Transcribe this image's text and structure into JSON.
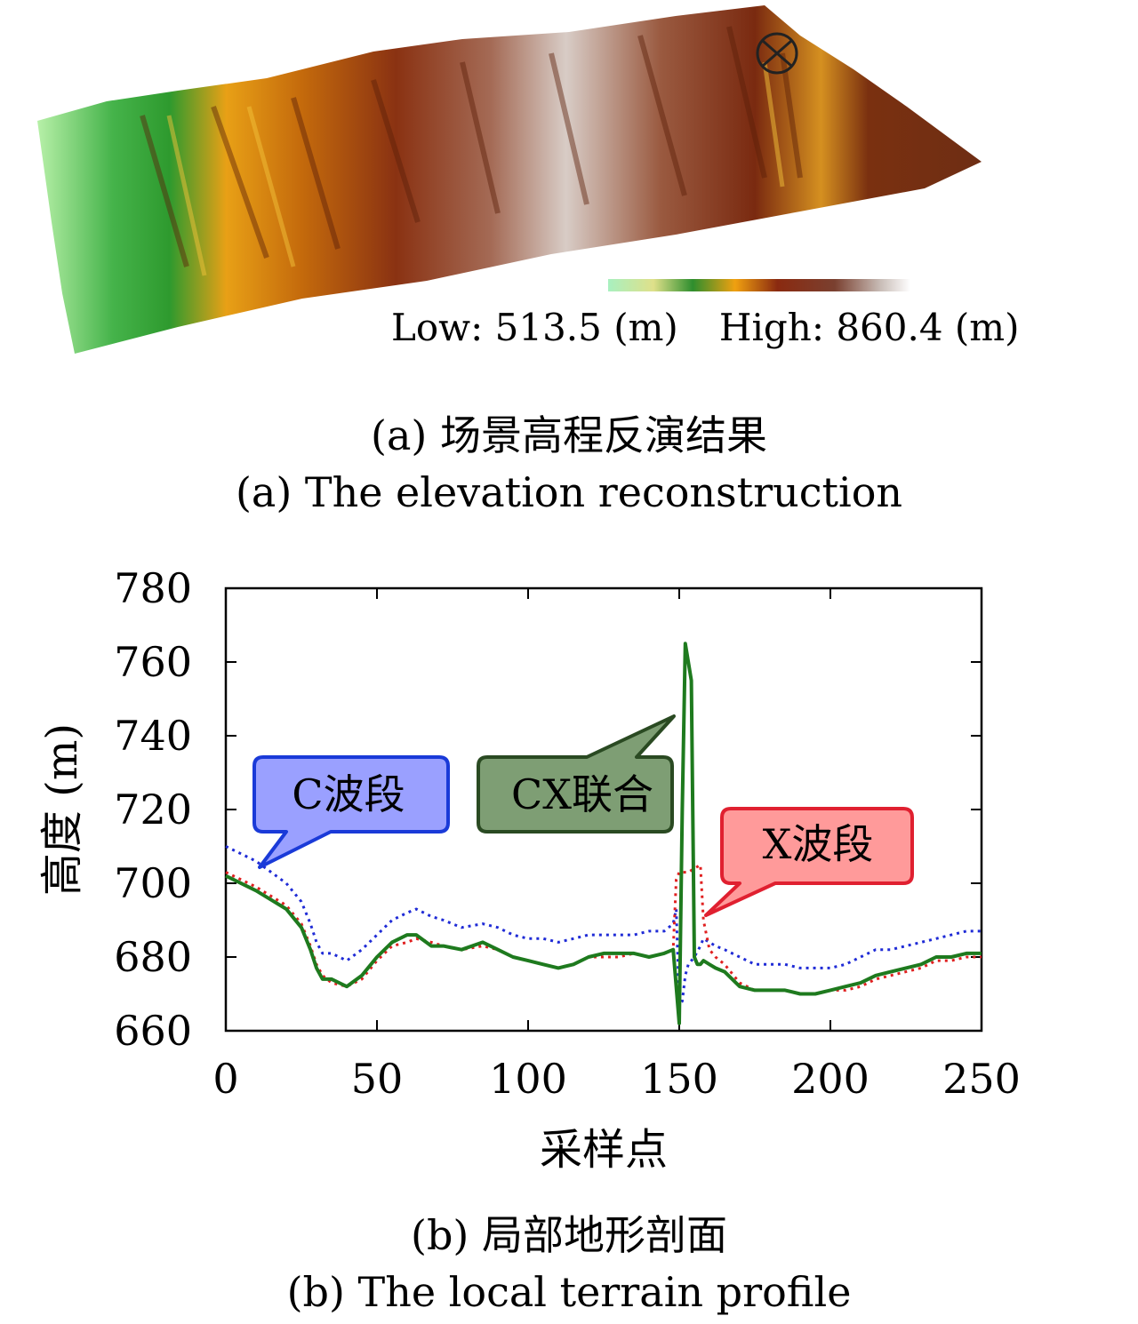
{
  "panel_a": {
    "colorbar_low": "Low: 513.5 (m)",
    "colorbar_high": "High: 860.4 (m)",
    "caption_cn": "(a) 场景高程反演结果",
    "caption_en": "(a) The elevation reconstruction"
  },
  "panel_b": {
    "caption_cn": "(b) 局部地形剖面",
    "caption_en": "(b) The local terrain profile"
  },
  "colors": {
    "c_band": "#1f2bd6",
    "x_band": "#e02020",
    "cx_joint": "#1e7a1e",
    "c_callout_fill": "#9aa0ff",
    "c_callout_edge": "#1a3ad8",
    "cx_callout_fill": "#7e9e74",
    "cx_callout_edge": "#2a4a22",
    "x_callout_fill": "#ff9a9a",
    "x_callout_edge": "#e02030",
    "terrain_low": "#b7f0a8",
    "terrain_mid": "#2e9a2e",
    "terrain_orange": "#f0a010",
    "terrain_brown": "#7a2a10",
    "terrain_high": "#f4f0ee"
  },
  "chart_data": {
    "type": "line",
    "xlabel": "采样点",
    "ylabel": "高度 (m)",
    "xlim": [
      0,
      250
    ],
    "ylim": [
      660,
      780
    ],
    "xticks": [
      0,
      50,
      100,
      150,
      200,
      250
    ],
    "yticks": [
      660,
      680,
      700,
      720,
      740,
      760,
      780
    ],
    "grid": false,
    "series": [
      {
        "name": "C波段",
        "style": "dotted",
        "x": [
          0,
          10,
          20,
          25,
          28,
          30,
          32,
          35,
          40,
          45,
          50,
          55,
          60,
          63,
          68,
          72,
          78,
          85,
          90,
          95,
          100,
          105,
          110,
          115,
          120,
          125,
          130,
          135,
          140,
          145,
          148,
          149,
          150,
          151,
          152,
          153,
          155,
          157,
          158,
          160,
          162,
          165,
          170,
          175,
          180,
          185,
          190,
          195,
          200,
          205,
          210,
          215,
          220,
          225,
          230,
          235,
          240,
          245,
          250
        ],
        "values": [
          710,
          706,
          700,
          695,
          689,
          684,
          681,
          681,
          679,
          682,
          686,
          690,
          692,
          693,
          691,
          690,
          688,
          689,
          688,
          686,
          685,
          685,
          684,
          685,
          686,
          686,
          686,
          686,
          687,
          687,
          689,
          693,
          667,
          668,
          675,
          678,
          680,
          683,
          685,
          684,
          683,
          682,
          680,
          678,
          678,
          678,
          677,
          677,
          677,
          678,
          680,
          682,
          682,
          683,
          684,
          685,
          686,
          687,
          687
        ]
      },
      {
        "name": "X波段",
        "style": "dotted",
        "x": [
          0,
          10,
          20,
          25,
          28,
          30,
          32,
          35,
          40,
          45,
          50,
          55,
          60,
          63,
          68,
          72,
          78,
          85,
          90,
          95,
          100,
          105,
          110,
          115,
          120,
          125,
          130,
          135,
          140,
          145,
          148,
          149,
          150,
          151,
          152,
          153,
          155,
          157,
          158,
          160,
          162,
          165,
          170,
          175,
          180,
          185,
          190,
          195,
          200,
          205,
          210,
          215,
          220,
          225,
          230,
          235,
          240,
          245,
          250
        ],
        "values": [
          703,
          699,
          694,
          689,
          683,
          678,
          675,
          673,
          672,
          674,
          679,
          683,
          684,
          685,
          684,
          683,
          682,
          683,
          682,
          680,
          679,
          678,
          677,
          678,
          680,
          680,
          680,
          681,
          680,
          681,
          682,
          701,
          703,
          703,
          703,
          703,
          704,
          705,
          690,
          682,
          680,
          678,
          673,
          671,
          671,
          671,
          670,
          670,
          671,
          671,
          672,
          674,
          675,
          676,
          677,
          679,
          679,
          680,
          680
        ]
      },
      {
        "name": "CX联合",
        "style": "solid",
        "x": [
          0,
          10,
          20,
          25,
          28,
          30,
          32,
          35,
          40,
          45,
          50,
          55,
          60,
          63,
          68,
          72,
          78,
          85,
          90,
          95,
          100,
          105,
          110,
          115,
          120,
          125,
          130,
          135,
          140,
          145,
          148,
          149,
          150,
          151,
          152,
          153,
          154,
          155,
          156,
          157,
          158,
          160,
          162,
          165,
          170,
          175,
          180,
          185,
          190,
          195,
          200,
          205,
          210,
          215,
          220,
          225,
          230,
          235,
          240,
          245,
          250
        ],
        "values": [
          702,
          698,
          693,
          688,
          682,
          677,
          674,
          674,
          672,
          675,
          680,
          684,
          686,
          686,
          683,
          683,
          682,
          684,
          682,
          680,
          679,
          678,
          677,
          678,
          680,
          681,
          681,
          681,
          680,
          681,
          682,
          672,
          662,
          720,
          765,
          760,
          755,
          680,
          678,
          678,
          679,
          678,
          677,
          676,
          672,
          671,
          671,
          671,
          670,
          670,
          671,
          672,
          673,
          675,
          676,
          677,
          678,
          680,
          680,
          681,
          681
        ]
      }
    ],
    "annotations": [
      "C波段",
      "CX联合",
      "X波段"
    ]
  }
}
